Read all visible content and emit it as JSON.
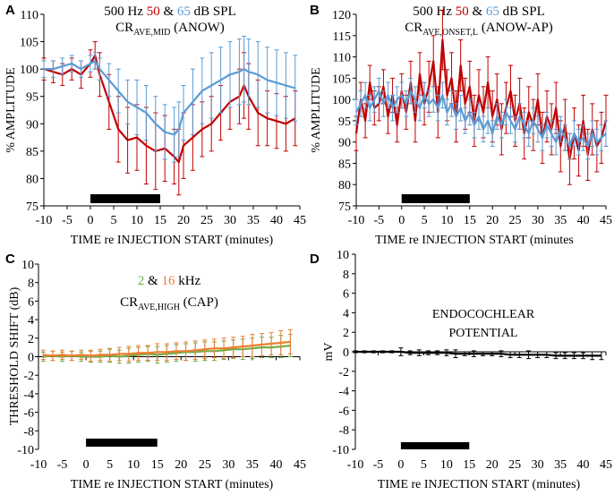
{
  "chart_data": [
    {
      "type": "line",
      "panel_letter": "A",
      "title_parts": [
        "500 Hz ",
        "50",
        " & ",
        "65",
        " dB SPL"
      ],
      "subtitle_main": "CR",
      "subtitle_sub": "AVE,MID",
      "subtitle_tail": " (ANOW)",
      "xlabel": "TIME re INJECTION START (minutes)",
      "ylabel": "% AMPLITUDE",
      "xlim": [
        -10,
        45
      ],
      "ylim": [
        75,
        110
      ],
      "xticks": [
        "-10",
        "-5",
        "0",
        "5",
        "10",
        "15",
        "20",
        "25",
        "30",
        "35",
        "40",
        "45"
      ],
      "yticks": [
        "75",
        "80",
        "85",
        "90",
        "95",
        "100",
        "105",
        "110"
      ],
      "injection_bar": [
        0,
        15
      ],
      "series": [
        {
          "name": "50 dB SPL",
          "color": "#c00000",
          "x": [
            -10,
            -8,
            -6,
            -4,
            -2,
            0,
            1,
            2,
            4,
            6,
            8,
            10,
            12,
            14,
            16,
            18,
            19,
            20,
            22,
            24,
            26,
            28,
            30,
            32,
            33,
            34,
            36,
            38,
            40,
            42,
            44
          ],
          "y": [
            100,
            99.5,
            99,
            100,
            99,
            101,
            102.5,
            99,
            94,
            89,
            87,
            87.5,
            86,
            85,
            85.5,
            84,
            83,
            86,
            87.5,
            89,
            90,
            92,
            94,
            95,
            97,
            95,
            92,
            91,
            90.5,
            90,
            91
          ],
          "err": [
            2,
            2,
            2,
            2,
            2.5,
            2.5,
            2.5,
            4,
            5,
            6,
            6,
            6,
            7,
            7,
            6,
            5,
            6,
            6,
            6,
            5,
            5,
            5,
            5,
            5,
            6,
            6,
            6,
            5,
            5,
            5,
            5
          ]
        },
        {
          "name": "65 dB SPL",
          "color": "#5b9bd5",
          "x": [
            -10,
            -8,
            -6,
            -4,
            -2,
            0,
            1,
            2,
            4,
            6,
            8,
            10,
            12,
            14,
            16,
            18,
            19,
            20,
            22,
            24,
            26,
            28,
            30,
            32,
            33,
            34,
            36,
            38,
            40,
            42,
            44
          ],
          "y": [
            100,
            100,
            100.5,
            101,
            100,
            101,
            101.5,
            100,
            98,
            96,
            94,
            93,
            92,
            90,
            88.5,
            88,
            89,
            92,
            94,
            96,
            97,
            98,
            99,
            99.5,
            100,
            99.5,
            99,
            98,
            97.5,
            97,
            96.5
          ],
          "err": [
            1.5,
            1.5,
            1.5,
            1.5,
            1.5,
            1.5,
            1.5,
            2,
            3,
            4,
            4,
            5,
            5,
            5,
            5,
            5,
            5,
            5,
            6,
            6,
            6,
            6,
            6,
            6,
            6,
            6,
            6,
            6,
            6,
            6,
            6
          ]
        }
      ]
    },
    {
      "type": "line",
      "panel_letter": "B",
      "title_parts": [
        "500 Hz ",
        "50",
        " & ",
        "65",
        " dB SPL"
      ],
      "subtitle_main": "CR",
      "subtitle_sub": "AVE,ONSET,L",
      "subtitle_tail": " (ANOW-AP)",
      "xlabel": "TIME re INJECTION START (minutes",
      "ylabel": "% AMPLITUDE",
      "xlim": [
        -10,
        45
      ],
      "ylim": [
        75,
        120
      ],
      "xticks": [
        "-10",
        "-5",
        "0",
        "5",
        "10",
        "15",
        "20",
        "25",
        "30",
        "35",
        "40",
        "45"
      ],
      "yticks": [
        "75",
        "80",
        "85",
        "90",
        "95",
        "100",
        "105",
        "110",
        "115",
        "120"
      ],
      "injection_bar": [
        0,
        15
      ],
      "series": [
        {
          "name": "50 dB SPL",
          "color": "#c00000",
          "x": [
            -10,
            -9,
            -8,
            -7,
            -6,
            -5,
            -4,
            -3,
            -2,
            -1,
            0,
            1,
            2,
            3,
            4,
            5,
            6,
            7,
            8,
            9,
            10,
            11,
            12,
            13,
            14,
            15,
            16,
            17,
            18,
            19,
            20,
            21,
            22,
            23,
            24,
            25,
            26,
            27,
            28,
            29,
            30,
            31,
            32,
            33,
            34,
            35,
            36,
            37,
            38,
            39,
            40,
            41,
            42,
            43,
            44,
            45
          ],
          "y": [
            92,
            100,
            95,
            104,
            98,
            99,
            103,
            96,
            101,
            94,
            102,
            97,
            104,
            95,
            106,
            99,
            103,
            109,
            97,
            114,
            101,
            105,
            96,
            108,
            99,
            103,
            95,
            101,
            97,
            104,
            96,
            100,
            93,
            98,
            102,
            95,
            99,
            92,
            97,
            94,
            100,
            91,
            96,
            93,
            98,
            89,
            94,
            86,
            92,
            88,
            95,
            87,
            93,
            89,
            91,
            95
          ],
          "err": [
            4,
            4,
            4,
            4,
            4,
            4,
            4,
            4,
            4,
            4,
            4,
            4,
            5,
            5,
            5,
            5,
            6,
            6,
            6,
            7,
            6,
            6,
            6,
            6,
            6,
            6,
            6,
            6,
            6,
            6,
            6,
            6,
            6,
            6,
            6,
            6,
            6,
            6,
            6,
            6,
            6,
            6,
            6,
            6,
            6,
            6,
            6,
            6,
            6,
            6,
            6,
            6,
            6,
            6,
            6,
            6
          ]
        },
        {
          "name": "65 dB SPL",
          "color": "#5b9bd5",
          "x": [
            -10,
            -9,
            -8,
            -7,
            -6,
            -5,
            -4,
            -3,
            -2,
            -1,
            0,
            1,
            2,
            3,
            4,
            5,
            6,
            7,
            8,
            9,
            10,
            11,
            12,
            13,
            14,
            15,
            16,
            17,
            18,
            19,
            20,
            21,
            22,
            23,
            24,
            25,
            26,
            27,
            28,
            29,
            30,
            31,
            32,
            33,
            34,
            35,
            36,
            37,
            38,
            39,
            40,
            41,
            42,
            43,
            44,
            45
          ],
          "y": [
            97,
            99,
            101,
            98,
            100,
            102,
            99,
            101,
            98,
            100,
            101,
            99,
            102,
            100,
            98,
            101,
            99,
            100,
            98,
            101,
            97,
            99,
            96,
            98,
            95,
            97,
            94,
            96,
            93,
            95,
            92,
            96,
            94,
            97,
            95,
            93,
            96,
            94,
            92,
            95,
            93,
            91,
            94,
            92,
            90,
            93,
            91,
            89,
            92,
            90,
            91,
            89,
            92,
            90,
            91,
            92
          ],
          "err": [
            3,
            3,
            3,
            3,
            3,
            3,
            3,
            3,
            3,
            3,
            3,
            3,
            3,
            3,
            3,
            3,
            3,
            3,
            3,
            3,
            3,
            3,
            3,
            3,
            3,
            3,
            3,
            3,
            3,
            3,
            3,
            3,
            3,
            3,
            3,
            3,
            3,
            3,
            3,
            3,
            3,
            3,
            3,
            3,
            3,
            3,
            3,
            3,
            3,
            3,
            3,
            3,
            3,
            3,
            3,
            3
          ]
        }
      ]
    },
    {
      "type": "line",
      "panel_letter": "C",
      "title_parts": [
        "2",
        " & ",
        "16",
        " kHz"
      ],
      "subtitle_main": "CR",
      "subtitle_sub": "AVE,HIGH",
      "subtitle_tail": " (CAP)",
      "xlabel": "TIME re INJECTION START (minutes)",
      "ylabel": "THRESHOLD SHIFT (dB)",
      "xlim": [
        -10,
        45
      ],
      "ylim": [
        -10,
        10
      ],
      "xticks": [
        "-10",
        "-5",
        "0",
        "5",
        "10",
        "15",
        "20",
        "25",
        "30",
        "35",
        "40",
        "45"
      ],
      "yticks": [
        "-10",
        "-8",
        "-6",
        "-4",
        "-2",
        "0",
        "2",
        "4",
        "6",
        "8",
        "10"
      ],
      "injection_bar": [
        0,
        15
      ],
      "series": [
        {
          "name": "2 kHz",
          "color": "#70ad47",
          "x": [
            -9,
            -7,
            -5,
            -3,
            -1,
            1,
            3,
            5,
            7,
            9,
            11,
            13,
            15,
            17,
            19,
            21,
            23,
            25,
            27,
            29,
            31,
            33,
            35,
            37,
            39,
            41,
            43
          ],
          "y": [
            0,
            0.1,
            0,
            0.1,
            0,
            0,
            0,
            0.1,
            0,
            0.1,
            0.2,
            0.3,
            0.2,
            0.3,
            0.4,
            0.5,
            0.5,
            0.6,
            0.6,
            0.7,
            0.8,
            0.8,
            0.9,
            1.0,
            1.0,
            1.1,
            1.2
          ],
          "err": [
            0.5,
            0.5,
            0.5,
            0.5,
            0.5,
            0.6,
            0.6,
            0.7,
            0.7,
            0.8,
            0.8,
            0.8,
            0.9,
            0.9,
            0.9,
            0.9,
            1.0,
            1.0,
            1.0,
            1.0,
            1.0,
            1.1,
            1.1,
            1.1,
            1.1,
            1.2,
            1.2
          ]
        },
        {
          "name": "16 kHz",
          "color": "#ed7d31",
          "x": [
            -9,
            -7,
            -5,
            -3,
            -1,
            1,
            3,
            5,
            7,
            9,
            11,
            13,
            15,
            17,
            19,
            21,
            23,
            25,
            27,
            29,
            31,
            33,
            35,
            37,
            39,
            41,
            43
          ],
          "y": [
            0.2,
            0.1,
            0.2,
            0.1,
            0.2,
            0.1,
            0.2,
            0.2,
            0.3,
            0.3,
            0.4,
            0.4,
            0.5,
            0.5,
            0.6,
            0.6,
            0.7,
            0.8,
            0.9,
            0.9,
            1.0,
            1.1,
            1.2,
            1.3,
            1.4,
            1.5,
            1.6
          ],
          "err": [
            0.5,
            0.5,
            0.5,
            0.5,
            0.5,
            0.6,
            0.6,
            0.7,
            0.7,
            0.8,
            0.8,
            0.8,
            0.9,
            0.9,
            0.9,
            1.0,
            1.0,
            1.0,
            1.0,
            1.1,
            1.1,
            1.1,
            1.2,
            1.2,
            1.2,
            1.3,
            1.3
          ]
        }
      ]
    },
    {
      "type": "line",
      "panel_letter": "D",
      "title_lines": [
        "ENDOCOCHLEAR",
        "POTENTIAL"
      ],
      "xlabel": "TIME re INJECTION START (minutes)",
      "ylabel": "mV",
      "xlim": [
        -10,
        45
      ],
      "ylim": [
        -10,
        10
      ],
      "xticks": [
        "-10",
        "-5",
        "0",
        "5",
        "10",
        "15",
        "20",
        "25",
        "30",
        "35",
        "40",
        "45"
      ],
      "yticks": [
        "-10",
        "-8",
        "-6",
        "-4",
        "-2",
        "0",
        "2",
        "4",
        "6",
        "8",
        "10"
      ],
      "injection_bar": [
        0,
        15
      ],
      "series": [
        {
          "name": "EP",
          "color": "#000000",
          "x": [
            -10,
            -8,
            -6,
            -4,
            -2,
            0,
            2,
            4,
            6,
            8,
            10,
            12,
            14,
            16,
            18,
            20,
            22,
            24,
            26,
            28,
            30,
            32,
            34,
            36,
            38,
            40,
            42,
            44
          ],
          "y": [
            0,
            0,
            0,
            0,
            0,
            0,
            -0.1,
            -0.1,
            -0.1,
            -0.1,
            -0.1,
            -0.2,
            -0.2,
            -0.2,
            -0.2,
            -0.2,
            -0.2,
            -0.3,
            -0.3,
            -0.3,
            -0.3,
            -0.3,
            -0.4,
            -0.4,
            -0.4,
            -0.4,
            -0.4,
            -0.4
          ],
          "err": [
            0.1,
            0.1,
            0.1,
            0.1,
            0.1,
            0.4,
            0.2,
            0.3,
            0.2,
            0.2,
            0.3,
            0.4,
            0.2,
            0.3,
            0.2,
            0.2,
            0.3,
            0.3,
            0.3,
            0.4,
            0.3,
            0.3,
            0.3,
            0.3,
            0.3,
            0.3,
            0.4,
            0.4
          ]
        }
      ]
    }
  ]
}
